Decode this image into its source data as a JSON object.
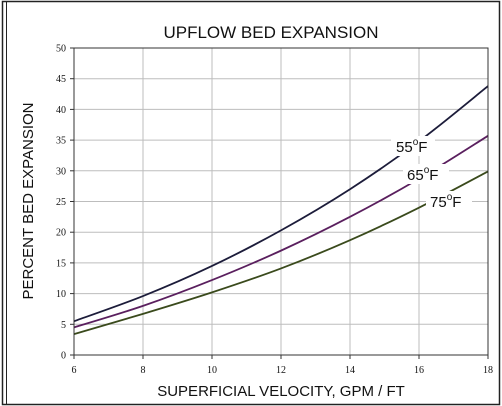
{
  "chart_data": {
    "type": "line",
    "title": "UPFLOW BED EXPANSION",
    "xlabel": "SUPERFICIAL VELOCITY, GPM / FT",
    "ylabel": "PERCENT BED EXPANSION",
    "xlim": [
      6,
      18
    ],
    "ylim": [
      0,
      50
    ],
    "x_ticks": [
      6,
      8,
      10,
      12,
      14,
      16,
      18
    ],
    "y_ticks": [
      0,
      5,
      10,
      15,
      20,
      25,
      30,
      35,
      40,
      45,
      50
    ],
    "grid": true,
    "legend": "none",
    "series": [
      {
        "name": "55°F",
        "color": "#1c1c3a",
        "x": [
          6,
          8,
          10,
          12,
          14,
          16,
          18
        ],
        "y": [
          5.5,
          9.6,
          14.5,
          20.3,
          27.0,
          34.8,
          43.8
        ]
      },
      {
        "name": "65°F",
        "color": "#5a1f5e",
        "x": [
          6,
          8,
          10,
          12,
          14,
          16,
          18
        ],
        "y": [
          4.5,
          8.0,
          12.2,
          17.0,
          22.5,
          28.7,
          35.7
        ]
      },
      {
        "name": "75°F",
        "color": "#3a4a1c",
        "x": [
          6,
          8,
          10,
          12,
          14,
          16,
          18
        ],
        "y": [
          3.4,
          6.7,
          10.2,
          14.1,
          18.7,
          24.0,
          29.9
        ]
      }
    ]
  },
  "labels": {
    "t55": "55",
    "t65": "65",
    "t75": "75",
    "deg": "o",
    "unit": "F"
  }
}
